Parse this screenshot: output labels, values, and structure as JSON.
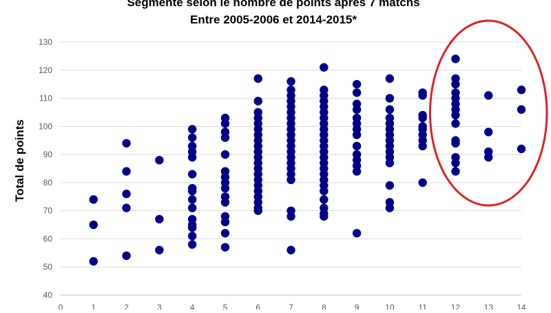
{
  "chart_data": {
    "type": "scatter",
    "title_lines": [
      "Segmenté selon le nombre de points après 7 matchs",
      "Entre 2005-2006 et 2014-2015*"
    ],
    "xlabel": "",
    "ylabel": "Total de points",
    "xlim": [
      0,
      14
    ],
    "ylim": [
      40,
      130
    ],
    "x_ticks": [
      0,
      1,
      2,
      3,
      4,
      5,
      6,
      7,
      8,
      9,
      10,
      11,
      12,
      13,
      14
    ],
    "y_ticks": [
      40,
      50,
      60,
      70,
      80,
      90,
      100,
      110,
      120,
      130
    ],
    "grid": "horizontal",
    "marker_color": "#00008B",
    "highlight_color": "#E31E24",
    "highlight_x_range": [
      12,
      14
    ],
    "points": [
      [
        1,
        74
      ],
      [
        1,
        65
      ],
      [
        1,
        52
      ],
      [
        2,
        94
      ],
      [
        2,
        84
      ],
      [
        2,
        76
      ],
      [
        2,
        71
      ],
      [
        2,
        54
      ],
      [
        3,
        88
      ],
      [
        3,
        67
      ],
      [
        3,
        56
      ],
      [
        4,
        99
      ],
      [
        4,
        96
      ],
      [
        4,
        93
      ],
      [
        4,
        91
      ],
      [
        4,
        89
      ],
      [
        4,
        83
      ],
      [
        4,
        78
      ],
      [
        4,
        77
      ],
      [
        4,
        74
      ],
      [
        4,
        71
      ],
      [
        4,
        67
      ],
      [
        4,
        65
      ],
      [
        4,
        64
      ],
      [
        4,
        61
      ],
      [
        4,
        58
      ],
      [
        5,
        103
      ],
      [
        5,
        101
      ],
      [
        5,
        98
      ],
      [
        5,
        96
      ],
      [
        5,
        90
      ],
      [
        5,
        84
      ],
      [
        5,
        82
      ],
      [
        5,
        80
      ],
      [
        5,
        78
      ],
      [
        5,
        75
      ],
      [
        5,
        73
      ],
      [
        5,
        68
      ],
      [
        5,
        66
      ],
      [
        5,
        62
      ],
      [
        5,
        57
      ],
      [
        6,
        117
      ],
      [
        6,
        109
      ],
      [
        6,
        105
      ],
      [
        6,
        103
      ],
      [
        6,
        101
      ],
      [
        6,
        99
      ],
      [
        6,
        97
      ],
      [
        6,
        95
      ],
      [
        6,
        93
      ],
      [
        6,
        91
      ],
      [
        6,
        89
      ],
      [
        6,
        87
      ],
      [
        6,
        85
      ],
      [
        6,
        83
      ],
      [
        6,
        81
      ],
      [
        6,
        79
      ],
      [
        6,
        77
      ],
      [
        6,
        75
      ],
      [
        6,
        73
      ],
      [
        6,
        71
      ],
      [
        6,
        70
      ],
      [
        7,
        116
      ],
      [
        7,
        113
      ],
      [
        7,
        111
      ],
      [
        7,
        109
      ],
      [
        7,
        107
      ],
      [
        7,
        105
      ],
      [
        7,
        103
      ],
      [
        7,
        101
      ],
      [
        7,
        99
      ],
      [
        7,
        97
      ],
      [
        7,
        95
      ],
      [
        7,
        93
      ],
      [
        7,
        91
      ],
      [
        7,
        89
      ],
      [
        7,
        87
      ],
      [
        7,
        85
      ],
      [
        7,
        83
      ],
      [
        7,
        81
      ],
      [
        7,
        70
      ],
      [
        7,
        68
      ],
      [
        7,
        56
      ],
      [
        8,
        121
      ],
      [
        8,
        113
      ],
      [
        8,
        111
      ],
      [
        8,
        109
      ],
      [
        8,
        107
      ],
      [
        8,
        105
      ],
      [
        8,
        103
      ],
      [
        8,
        101
      ],
      [
        8,
        99
      ],
      [
        8,
        97
      ],
      [
        8,
        95
      ],
      [
        8,
        93
      ],
      [
        8,
        91
      ],
      [
        8,
        89
      ],
      [
        8,
        87
      ],
      [
        8,
        85
      ],
      [
        8,
        83
      ],
      [
        8,
        81
      ],
      [
        8,
        79
      ],
      [
        8,
        77
      ],
      [
        8,
        74
      ],
      [
        8,
        71
      ],
      [
        8,
        69
      ],
      [
        8,
        68
      ],
      [
        9,
        115
      ],
      [
        9,
        112
      ],
      [
        9,
        108
      ],
      [
        9,
        106
      ],
      [
        9,
        103
      ],
      [
        9,
        101
      ],
      [
        9,
        99
      ],
      [
        9,
        97
      ],
      [
        9,
        93
      ],
      [
        9,
        90
      ],
      [
        9,
        88
      ],
      [
        9,
        86
      ],
      [
        9,
        84
      ],
      [
        9,
        62
      ],
      [
        10,
        117
      ],
      [
        10,
        110
      ],
      [
        10,
        106
      ],
      [
        10,
        103
      ],
      [
        10,
        101
      ],
      [
        10,
        99
      ],
      [
        10,
        97
      ],
      [
        10,
        95
      ],
      [
        10,
        93
      ],
      [
        10,
        91
      ],
      [
        10,
        89
      ],
      [
        10,
        87
      ],
      [
        10,
        79
      ],
      [
        10,
        73
      ],
      [
        10,
        71
      ],
      [
        11,
        112
      ],
      [
        11,
        111
      ],
      [
        11,
        104
      ],
      [
        11,
        103
      ],
      [
        11,
        100
      ],
      [
        11,
        99
      ],
      [
        11,
        97
      ],
      [
        11,
        95
      ],
      [
        11,
        93
      ],
      [
        11,
        80
      ],
      [
        12,
        124
      ],
      [
        12,
        117
      ],
      [
        12,
        115
      ],
      [
        12,
        112
      ],
      [
        12,
        110
      ],
      [
        12,
        108
      ],
      [
        12,
        106
      ],
      [
        12,
        104
      ],
      [
        12,
        101
      ],
      [
        12,
        95
      ],
      [
        12,
        94
      ],
      [
        12,
        89
      ],
      [
        12,
        87
      ],
      [
        12,
        84
      ],
      [
        13,
        111
      ],
      [
        13,
        98
      ],
      [
        13,
        91
      ],
      [
        13,
        89
      ],
      [
        14,
        113
      ],
      [
        14,
        106
      ],
      [
        14,
        92
      ]
    ]
  }
}
